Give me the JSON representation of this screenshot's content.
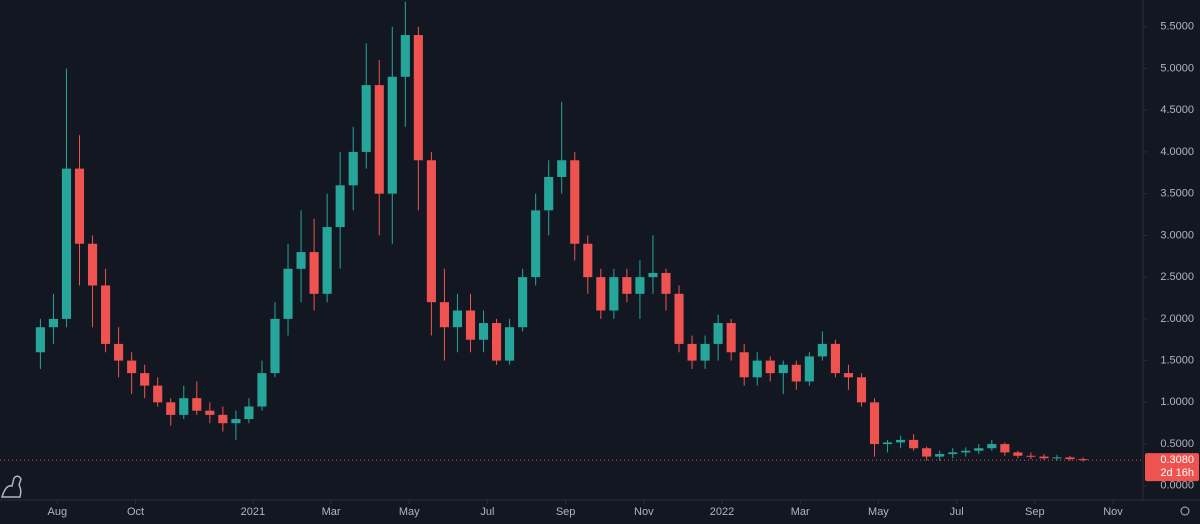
{
  "chart_data": {
    "type": "candlestick",
    "x": [
      0,
      1,
      2,
      3,
      4,
      5,
      6,
      7,
      8,
      9,
      10,
      11,
      12,
      13,
      14,
      15,
      16,
      17,
      18,
      19,
      20,
      21,
      22,
      23,
      24,
      25,
      26,
      27,
      28,
      29,
      30,
      31,
      32,
      33,
      34,
      35,
      36,
      37,
      38,
      39,
      40,
      41,
      42,
      43,
      44,
      45,
      46,
      47,
      48,
      49,
      50,
      51,
      52,
      53,
      54,
      55,
      56,
      57,
      58,
      59,
      60,
      61,
      62,
      63,
      64,
      65,
      66,
      67,
      68,
      69,
      70,
      71,
      72,
      73,
      74,
      75,
      76,
      77,
      78,
      79,
      80
    ],
    "series": [
      {
        "open": [
          1.6,
          1.9,
          2.0,
          3.8,
          2.9,
          2.4,
          1.7,
          1.5,
          1.35,
          1.2,
          1.0,
          0.85,
          1.05,
          0.9,
          0.85,
          0.75,
          0.8,
          0.95,
          1.35,
          2.0,
          2.6,
          2.8,
          2.3,
          3.1,
          3.6,
          4.0,
          4.8,
          3.5,
          4.9,
          5.4,
          3.9,
          2.2,
          1.9,
          2.1,
          1.75,
          1.95,
          1.5,
          1.9,
          2.5,
          3.3,
          3.7,
          3.9,
          2.9,
          2.5,
          2.1,
          2.5,
          2.3,
          2.5,
          2.55,
          2.3,
          1.7,
          1.5,
          1.7,
          1.95,
          1.6,
          1.3,
          1.5,
          1.35,
          1.45,
          1.25,
          1.55,
          1.7,
          1.35,
          1.3,
          1.0,
          0.5,
          0.52,
          0.55,
          0.45,
          0.35,
          0.38,
          0.4,
          0.42,
          0.45,
          0.5,
          0.4,
          0.36,
          0.35,
          0.33,
          0.34,
          0.32
        ],
        "high": [
          2.0,
          2.3,
          5.0,
          4.2,
          3.0,
          2.6,
          1.9,
          1.6,
          1.45,
          1.3,
          1.05,
          1.2,
          1.25,
          1.0,
          0.95,
          0.9,
          1.05,
          1.5,
          2.2,
          2.9,
          3.3,
          3.2,
          3.5,
          4.0,
          4.3,
          5.3,
          5.1,
          5.5,
          5.8,
          5.5,
          4.0,
          2.6,
          2.3,
          2.3,
          2.1,
          2.0,
          2.0,
          2.6,
          3.5,
          3.9,
          4.6,
          4.0,
          3.0,
          2.6,
          2.6,
          2.6,
          2.7,
          3.0,
          2.6,
          2.4,
          1.8,
          1.8,
          2.05,
          2.0,
          1.7,
          1.6,
          1.55,
          1.5,
          1.5,
          1.6,
          1.85,
          1.75,
          1.45,
          1.35,
          1.05,
          0.55,
          0.6,
          0.62,
          0.47,
          0.42,
          0.45,
          0.46,
          0.5,
          0.55,
          0.52,
          0.42,
          0.4,
          0.38,
          0.37,
          0.36,
          0.34
        ],
        "low": [
          1.4,
          1.7,
          1.9,
          2.4,
          1.9,
          1.6,
          1.3,
          1.1,
          1.05,
          0.95,
          0.72,
          0.8,
          0.85,
          0.75,
          0.65,
          0.55,
          0.75,
          0.9,
          1.3,
          1.8,
          2.2,
          2.1,
          2.2,
          2.6,
          3.3,
          3.8,
          3.0,
          2.9,
          4.3,
          3.3,
          1.8,
          1.5,
          1.6,
          1.6,
          1.6,
          1.45,
          1.45,
          1.85,
          2.4,
          3.0,
          3.5,
          2.7,
          2.3,
          2.0,
          2.0,
          2.2,
          2.0,
          2.3,
          2.1,
          1.6,
          1.4,
          1.4,
          1.5,
          1.5,
          1.2,
          1.2,
          1.25,
          1.1,
          1.15,
          1.2,
          1.5,
          1.3,
          1.15,
          0.95,
          0.35,
          0.4,
          0.45,
          0.42,
          0.3,
          0.3,
          0.33,
          0.35,
          0.38,
          0.42,
          0.36,
          0.33,
          0.32,
          0.31,
          0.3,
          0.3,
          0.29
        ],
        "close": [
          1.9,
          2.0,
          3.8,
          2.9,
          2.4,
          1.7,
          1.5,
          1.35,
          1.2,
          1.0,
          0.85,
          1.05,
          0.9,
          0.85,
          0.75,
          0.8,
          0.95,
          1.35,
          2.0,
          2.6,
          2.8,
          2.3,
          3.1,
          3.6,
          4.0,
          4.8,
          3.5,
          4.9,
          5.4,
          3.9,
          2.2,
          1.9,
          2.1,
          1.75,
          1.95,
          1.5,
          1.9,
          2.5,
          3.3,
          3.7,
          3.9,
          2.9,
          2.5,
          2.1,
          2.5,
          2.3,
          2.5,
          2.55,
          2.3,
          1.7,
          1.5,
          1.7,
          1.95,
          1.6,
          1.3,
          1.5,
          1.35,
          1.45,
          1.25,
          1.55,
          1.7,
          1.35,
          1.3,
          1.0,
          0.5,
          0.52,
          0.55,
          0.45,
          0.35,
          0.38,
          0.4,
          0.42,
          0.45,
          0.5,
          0.4,
          0.36,
          0.35,
          0.33,
          0.34,
          0.32,
          0.308
        ]
      }
    ],
    "up_color": "#26a69a",
    "down_color": "#ef5350",
    "xlim": [
      -3.1,
      84.6
    ],
    "xticks": [
      {
        "value": 1.3,
        "label": "Aug"
      },
      {
        "value": 7.3,
        "label": "Oct"
      },
      {
        "value": 16.3,
        "label": "2021"
      },
      {
        "value": 22.3,
        "label": "Mar"
      },
      {
        "value": 28.3,
        "label": "May"
      },
      {
        "value": 34.3,
        "label": "Jul"
      },
      {
        "value": 40.3,
        "label": "Sep"
      },
      {
        "value": 46.3,
        "label": "Nov"
      },
      {
        "value": 52.3,
        "label": "2022"
      },
      {
        "value": 58.3,
        "label": "Mar"
      },
      {
        "value": 64.3,
        "label": "May"
      },
      {
        "value": 70.3,
        "label": "Jul"
      },
      {
        "value": 76.3,
        "label": "Sep"
      },
      {
        "value": 82.3,
        "label": "Nov"
      }
    ],
    "ylim": [
      -0.17,
      5.82
    ],
    "yticks": [
      {
        "value": 0,
        "label": "0.0000"
      },
      {
        "value": 0.5,
        "label": "0.5000"
      },
      {
        "value": 1,
        "label": "1.0000"
      },
      {
        "value": 1.5,
        "label": "1.5000"
      },
      {
        "value": 2,
        "label": "2.0000"
      },
      {
        "value": 2.5,
        "label": "2.5000"
      },
      {
        "value": 3,
        "label": "3.0000"
      },
      {
        "value": 3.5,
        "label": "3.5000"
      },
      {
        "value": 4,
        "label": "4.0000"
      },
      {
        "value": 4.5,
        "label": "4.5000"
      },
      {
        "value": 5,
        "label": "5.0000"
      },
      {
        "value": 5.5,
        "label": "5.5000"
      }
    ],
    "last_price": {
      "value": 0.308,
      "label": "0.3080"
    },
    "countdown": "2d 16h",
    "grid": false
  }
}
